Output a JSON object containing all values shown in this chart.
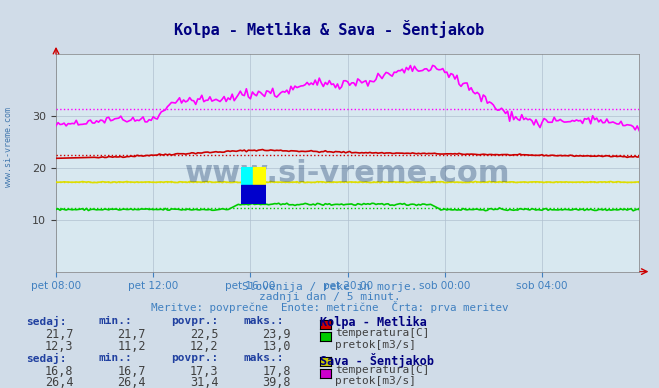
{
  "title": "Kolpa - Metlika & Sava - Šentjakob",
  "title_color": "#000080",
  "bg_color": "#d0dce8",
  "plot_bg_color": "#d8e8f0",
  "grid_color": "#b0c0d0",
  "xlabel_color": "#4080c0",
  "subtitle1": "Slovenija / reke in morje.",
  "subtitle2": "zadnji dan / 5 minut.",
  "subtitle3": "Meritve: povprečne  Enote: metrične  Črta: prva meritev",
  "subtitle_color": "#4080c0",
  "watermark": "www.si-vreme.com",
  "watermark_color": "#1a3a6a",
  "xtick_labels": [
    "pet 08:00",
    "pet 12:00",
    "pet 16:00",
    "pet 20:00",
    "sob 00:00",
    "sob 04:00"
  ],
  "xtick_positions": [
    0,
    48,
    96,
    144,
    192,
    240
  ],
  "n_points": 289,
  "ylim": [
    0,
    42
  ],
  "yticks": [
    10,
    20,
    30
  ],
  "kolpa_temp_avg": 22.5,
  "kolpa_flow_avg": 12.2,
  "sava_temp_avg": 17.3,
  "sava_flow_avg": 31.4,
  "kolpa_temp_color": "#cc0000",
  "kolpa_flow_color": "#00cc00",
  "sava_temp_color": "#dddd00",
  "sava_flow_color": "#ff00ff",
  "arrow_color": "#cc0000",
  "legend_box": {
    "station1": "Kolpa - Metlika",
    "s1_temp_label": "temperatura[C]",
    "s1_temp_color": "#cc0000",
    "s1_flow_label": "pretok[m3/s]",
    "s1_flow_color": "#00cc00",
    "s1_sedaj": "21,7",
    "s1_min": "21,7",
    "s1_povpr": "22,5",
    "s1_maks": "23,9",
    "s1_f_sedaj": "12,3",
    "s1_f_min": "11,2",
    "s1_f_povpr": "12,2",
    "s1_f_maks": "13,0",
    "station2": "Sava - Šentjakob",
    "s2_temp_label": "temperatura[C]",
    "s2_temp_color": "#cccc00",
    "s2_flow_label": "pretok[m3/s]",
    "s2_flow_color": "#cc00cc",
    "s2_sedaj": "16,8",
    "s2_min": "16,7",
    "s2_povpr": "17,3",
    "s2_maks": "17,8",
    "s2_f_sedaj": "26,4",
    "s2_f_min": "26,4",
    "s2_f_povpr": "31,4",
    "s2_f_maks": "39,8"
  }
}
